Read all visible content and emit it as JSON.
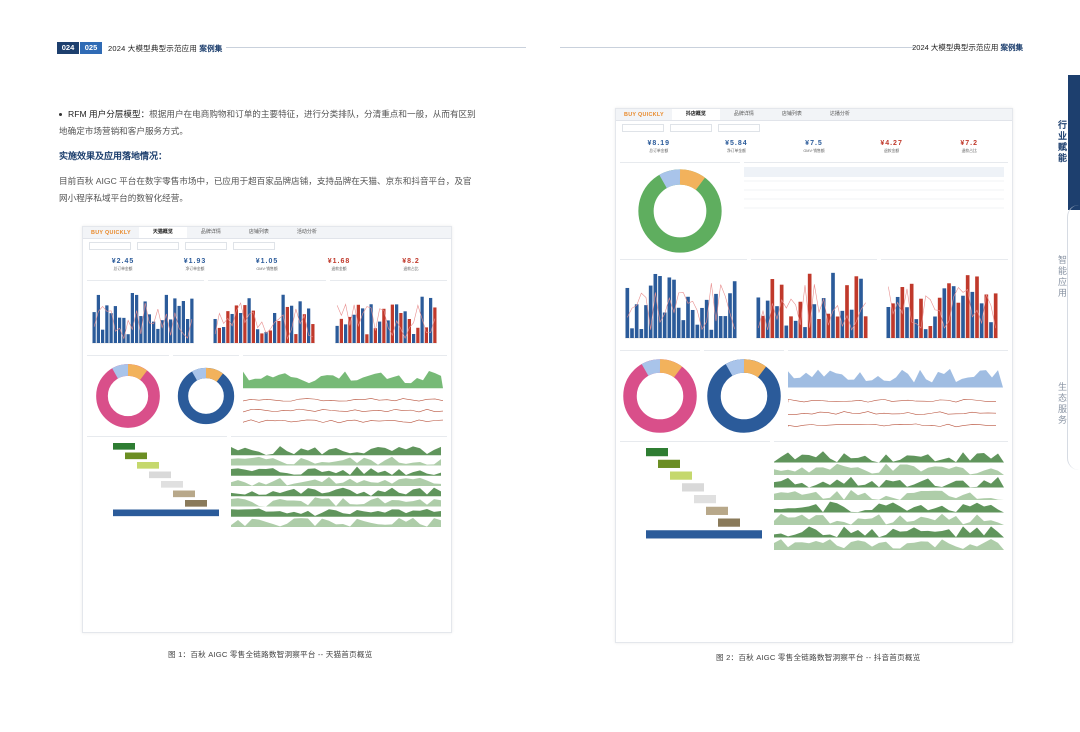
{
  "header": {
    "page_left": "024",
    "page_right": "025",
    "title_prefix": "2024 大模型典型示范应用",
    "title_bold": "案例集"
  },
  "sidebar": {
    "items": [
      {
        "label": "行业赋能",
        "active": true
      },
      {
        "label": "智能应用",
        "active": false
      },
      {
        "label": "生态服务",
        "active": false
      }
    ]
  },
  "body": {
    "bullet_title": "RFM 用户分层模型：",
    "bullet_text": "根据用户在电商购物和订单的主要特征，进行分类排队，分清重点和一般，从而有区别地确定市场营销和客户服务方式。",
    "section_title": "实施效果及应用落地情况：",
    "paragraph": "目前百秋 AIGC 平台在数字零售市场中，已应用于超百家品牌店铺，支持品牌在天猫、京东和抖音平台，及官网小程序私域平台的数智化经营。"
  },
  "figure1": {
    "caption": "图 1：百秋 AIGC 零售全链路数智洞察平台 -- 天猫首页概览",
    "logo": "BUY QUICKLY",
    "tabs": [
      "天猫概览",
      "品牌详情",
      "店铺列表",
      "活动分析"
    ],
    "active_tab": 0,
    "kpis": [
      {
        "value": "¥2.45",
        "label": "总订单金额",
        "color": "#2b5b9a"
      },
      {
        "value": "¥1.93",
        "label": "净订单金额",
        "color": "#2b5b9a"
      },
      {
        "value": "¥1.05",
        "label": "GMV·销售额",
        "color": "#2b5b9a"
      },
      {
        "value": "¥1.68",
        "label": "退款金额",
        "color": "#c0392b"
      },
      {
        "value": "¥8.2",
        "label": "退款占比",
        "color": "#c0392b"
      }
    ]
  },
  "figure2": {
    "caption": "图 2：百秋 AIGC 零售全链路数智洞察平台 -- 抖音首页概览",
    "logo": "BUY QUICKLY",
    "tabs": [
      "抖店概览",
      "品牌详情",
      "店铺列表",
      "达播分析"
    ],
    "active_tab": 0,
    "kpis": [
      {
        "value": "¥8.19",
        "label": "总订单金额",
        "color": "#2b5b9a"
      },
      {
        "value": "¥5.84",
        "label": "净订单金额",
        "color": "#2b5b9a"
      },
      {
        "value": "¥7.5",
        "label": "GMV·销售额",
        "color": "#2b5b9a"
      },
      {
        "value": "¥4.27",
        "label": "退款金额",
        "color": "#c0392b"
      },
      {
        "value": "¥7.2",
        "label": "退款占比",
        "color": "#c0392b"
      }
    ]
  },
  "colors": {
    "navy": "#1d3f6e",
    "blue": "#2f6bb5",
    "chart_blue": "#2b5b9a",
    "chart_red": "#c0392b",
    "green": "#5fae5f",
    "pink": "#d94f8a",
    "orange": "#e98a2b"
  }
}
